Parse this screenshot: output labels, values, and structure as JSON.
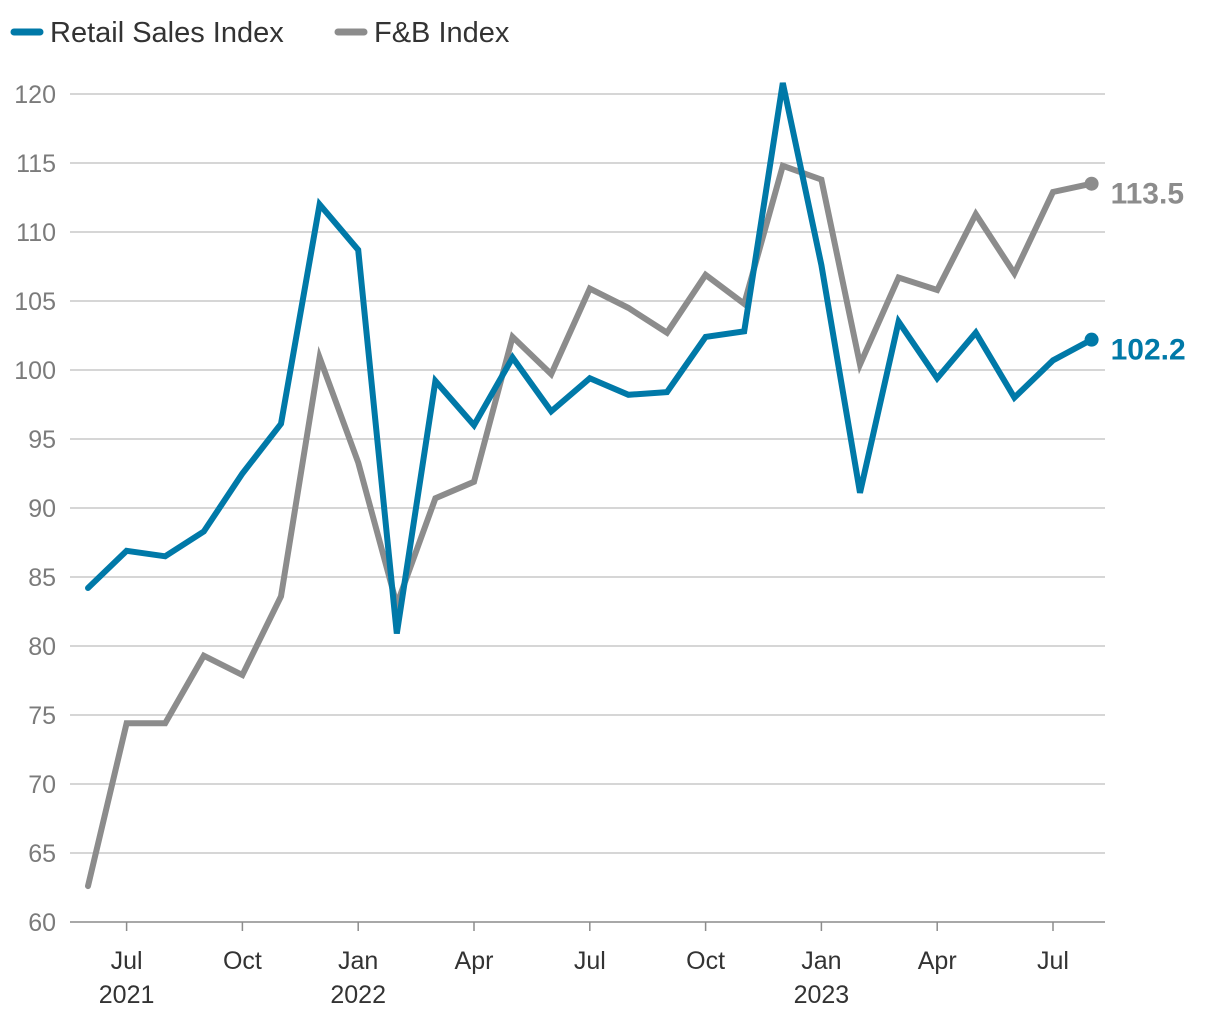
{
  "chart_data": {
    "type": "line",
    "title": "",
    "xlabel": "",
    "ylabel": "",
    "ylim": [
      60,
      120
    ],
    "yticks": [
      60,
      65,
      70,
      75,
      80,
      85,
      90,
      95,
      100,
      105,
      110,
      115,
      120
    ],
    "grid": true,
    "legend_position": "top-left",
    "x": [
      "Jun 2021",
      "Jul 2021",
      "Aug 2021",
      "Sep 2021",
      "Oct 2021",
      "Nov 2021",
      "Dec 2021",
      "Jan 2022",
      "Feb 2022",
      "Mar 2022",
      "Apr 2022",
      "May 2022",
      "Jun 2022",
      "Jul 2022",
      "Aug 2022",
      "Sep 2022",
      "Oct 2022",
      "Nov 2022",
      "Dec 2022",
      "Jan 2023",
      "Feb 2023",
      "Mar 2023",
      "Apr 2023",
      "May 2023",
      "Jun 2023",
      "Jul 2023",
      "Aug 2023"
    ],
    "x_tick_labels": [
      {
        "index": 1,
        "month": "Jul",
        "year": "2021"
      },
      {
        "index": 4,
        "month": "Oct",
        "year": ""
      },
      {
        "index": 7,
        "month": "Jan",
        "year": "2022"
      },
      {
        "index": 10,
        "month": "Apr",
        "year": ""
      },
      {
        "index": 13,
        "month": "Jul",
        "year": ""
      },
      {
        "index": 16,
        "month": "Oct",
        "year": ""
      },
      {
        "index": 19,
        "month": "Jan",
        "year": "2023"
      },
      {
        "index": 22,
        "month": "Apr",
        "year": ""
      },
      {
        "index": 25,
        "month": "Jul",
        "year": ""
      }
    ],
    "series": [
      {
        "name": "F&B Index",
        "color": "#8c8c8c",
        "values": [
          62.6,
          74.4,
          74.4,
          79.3,
          77.9,
          83.6,
          100.9,
          93.3,
          83.0,
          90.7,
          91.9,
          102.4,
          99.7,
          105.9,
          104.5,
          102.7,
          106.9,
          104.8,
          114.8,
          113.8,
          100.4,
          106.7,
          105.8,
          111.3,
          107.0,
          112.9,
          113.5
        ],
        "end_label": "113.5"
      },
      {
        "name": "Retail Sales Index",
        "color": "#0079a8",
        "values": [
          84.2,
          86.9,
          86.5,
          88.3,
          92.5,
          96.1,
          112.0,
          108.7,
          80.9,
          99.2,
          96.0,
          100.9,
          97.0,
          99.4,
          98.2,
          98.4,
          102.4,
          102.8,
          120.8,
          107.6,
          91.1,
          103.5,
          99.4,
          102.7,
          98.0,
          100.7,
          102.2
        ],
        "end_label": "102.2"
      }
    ],
    "legend": [
      "Retail Sales Index",
      "F&B Index"
    ]
  }
}
